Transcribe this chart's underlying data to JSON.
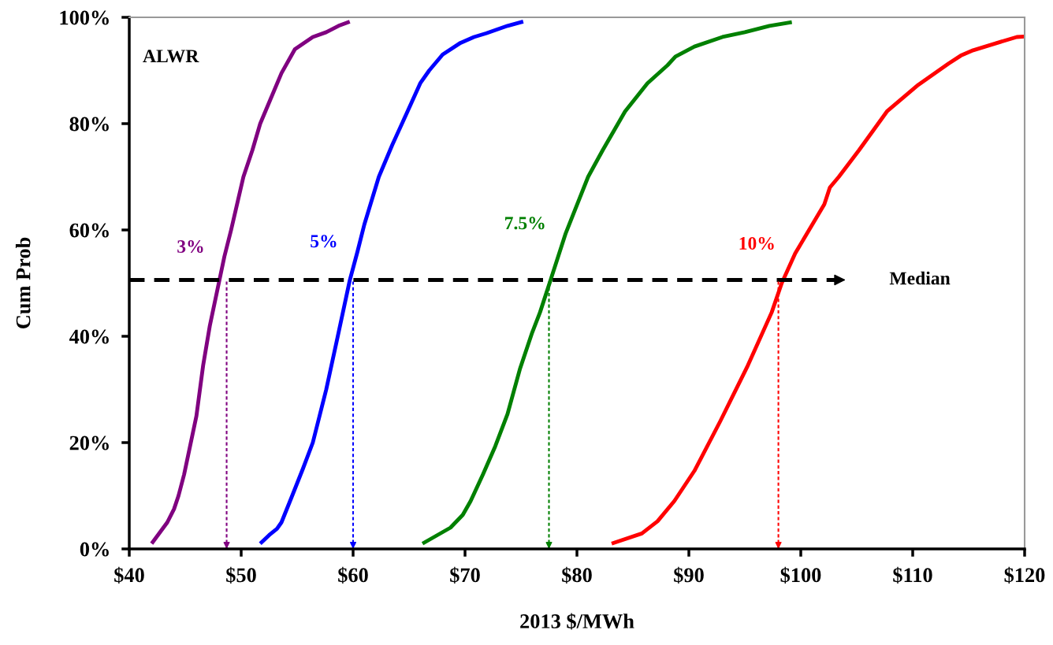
{
  "chart_data": {
    "type": "line",
    "xlabel": "2013 $/MWh",
    "ylabel": "Cum Prob",
    "xlim": [
      40,
      120
    ],
    "ylim": [
      0,
      100
    ],
    "xticks": [
      {
        "value": 40,
        "label": "$40"
      },
      {
        "value": 50,
        "label": "$50"
      },
      {
        "value": 60,
        "label": "$60"
      },
      {
        "value": 70,
        "label": "$70"
      },
      {
        "value": 80,
        "label": "$80"
      },
      {
        "value": 90,
        "label": "$90"
      },
      {
        "value": 100,
        "label": "$100"
      },
      {
        "value": 110,
        "label": "$110"
      },
      {
        "value": 120,
        "label": "$120"
      }
    ],
    "yticks": [
      {
        "value": 0,
        "label": "0%"
      },
      {
        "value": 20,
        "label": "20%"
      },
      {
        "value": 40,
        "label": "40%"
      },
      {
        "value": 60,
        "label": "60%"
      },
      {
        "value": 80,
        "label": "80%"
      },
      {
        "value": 100,
        "label": "100%"
      }
    ],
    "grid": false,
    "legend": false,
    "marker": "none",
    "annotations": [
      "ALWR"
    ],
    "series": [
      {
        "name": "3%",
        "color": "#800080",
        "line_style": "solid",
        "x": [
          42.0,
          43.4,
          44.0,
          44.4,
          44.9,
          46.0,
          46.6,
          47.2,
          48.0,
          48.5,
          49.1,
          50.2,
          51.0,
          51.7,
          52.7,
          53.6,
          54.8,
          56.4,
          57.6,
          58.7,
          59.7
        ],
        "values": [
          1,
          5,
          7.5,
          10,
          14,
          25,
          34.5,
          42,
          50,
          55,
          60,
          70,
          75,
          80,
          85,
          89.5,
          94,
          96.3,
          97.2,
          98.4,
          99.2
        ]
      },
      {
        "name": "5%",
        "color": "#0000ff",
        "line_style": "solid",
        "x": [
          51.7,
          52.5,
          53.2,
          53.6,
          54.5,
          55.5,
          56.4,
          57.0,
          57.6,
          58.6,
          59.2,
          59.7,
          60.4,
          61.0,
          62.3,
          63.5,
          64.8,
          66.0,
          66.8,
          68.0,
          69.6,
          70.8,
          71.9,
          73.8,
          75.2
        ],
        "values": [
          1,
          2.6,
          3.8,
          5,
          9.7,
          15,
          20,
          25,
          30,
          39.7,
          45.6,
          50.5,
          56,
          61,
          70,
          76,
          82,
          87.6,
          90,
          93,
          95.2,
          96.3,
          97,
          98.4,
          99.2
        ]
      },
      {
        "name": "7.5%",
        "color": "#008000",
        "line_style": "solid",
        "x": [
          66.2,
          68.7,
          69.8,
          70.5,
          71.6,
          72.7,
          73.8,
          74.9,
          76.0,
          76.7,
          77.6,
          79.0,
          81.0,
          82.3,
          84.3,
          86.3,
          88.1,
          88.8,
          90.5,
          93.0,
          95.0,
          97.2,
          99.2
        ],
        "values": [
          1,
          4,
          6.4,
          9,
          14,
          19.3,
          25.4,
          33.8,
          40.7,
          44.5,
          50.3,
          59.4,
          70,
          75,
          82.3,
          87.6,
          91,
          92.6,
          94.5,
          96.3,
          97.2,
          98.4,
          99.1
        ]
      },
      {
        "name": "10%",
        "color": "#ff0000",
        "line_style": "solid",
        "x": [
          83.1,
          85.8,
          87.2,
          88.7,
          90.5,
          92.8,
          95.2,
          97.4,
          98.3,
          99.5,
          102.1,
          102.6,
          103.4,
          105.2,
          107.7,
          110.5,
          113.2,
          114.3,
          115.4,
          117.4,
          119.3,
          120.0
        ],
        "values": [
          1,
          2.9,
          5.2,
          9,
          14.7,
          24,
          34.2,
          44.5,
          50,
          55.6,
          64.8,
          68,
          70,
          75,
          82.3,
          87.3,
          91.3,
          92.8,
          93.8,
          95.1,
          96.3,
          96.4
        ]
      }
    ],
    "ref_lines": [
      {
        "axis": "y",
        "value": 50.6,
        "label": "Median",
        "color": "#000000",
        "line_style": "dashed"
      },
      {
        "axis": "x",
        "value": 48.7,
        "color": "#800080",
        "line_style": "dotted"
      },
      {
        "axis": "x",
        "value": 60.0,
        "color": "#0000ff",
        "line_style": "dotted"
      },
      {
        "axis": "x",
        "value": 77.5,
        "color": "#008000",
        "line_style": "dotted"
      },
      {
        "axis": "x",
        "value": 98.0,
        "color": "#ff0000",
        "line_style": "dotted"
      }
    ]
  }
}
